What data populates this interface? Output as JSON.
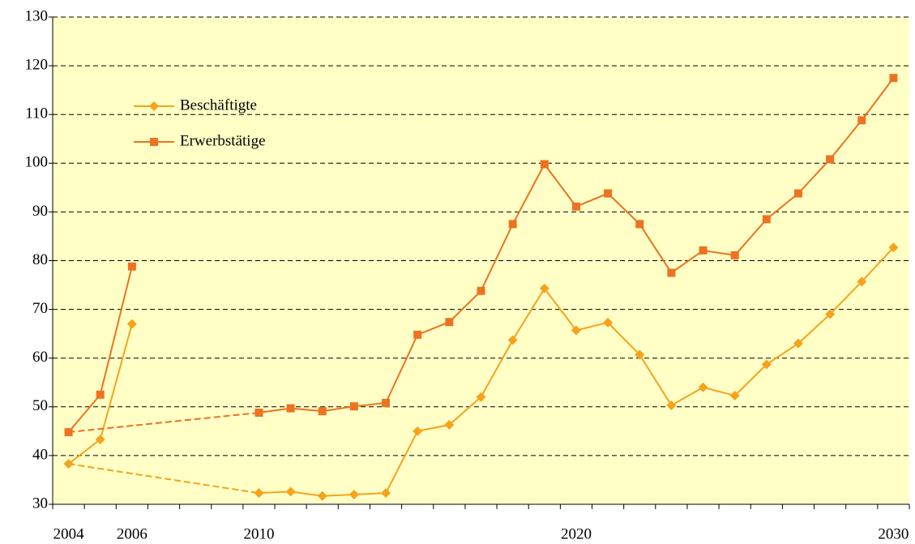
{
  "chart_data": {
    "type": "line",
    "categories": [
      "2004",
      null,
      "2006",
      null,
      null,
      null,
      "2010",
      null,
      null,
      null,
      null,
      null,
      null,
      null,
      null,
      null,
      "2020",
      null,
      null,
      null,
      null,
      null,
      null,
      null,
      null,
      null,
      "2030"
    ],
    "series": [
      {
        "name": "Beschäftigte",
        "color": "#f7a21b",
        "marker": "diamond",
        "values": [
          38.3,
          43.3,
          67.0,
          null,
          null,
          null,
          32.3,
          32.6,
          31.7,
          32.0,
          32.3,
          45.0,
          46.3,
          52.0,
          63.7,
          74.3,
          65.7,
          67.3,
          60.7,
          50.3,
          54.0,
          52.3,
          58.7,
          63.0,
          69.0,
          75.7,
          82.7
        ]
      },
      {
        "name": "Erwerbstätige",
        "color": "#ee7220",
        "marker": "square",
        "values": [
          44.8,
          52.5,
          78.8,
          null,
          null,
          null,
          48.8,
          49.7,
          49.1,
          50.1,
          50.8,
          64.8,
          67.4,
          73.8,
          87.5,
          99.8,
          91.1,
          93.8,
          87.5,
          77.5,
          82.1,
          81.1,
          88.5,
          93.8,
          100.8,
          108.8,
          117.5
        ]
      }
    ],
    "ylim": [
      30,
      130
    ],
    "yticks": [
      30,
      40,
      50,
      60,
      70,
      80,
      90,
      100,
      110,
      120,
      130
    ],
    "grid": true,
    "legend": "upper left",
    "background": "#ffffc6"
  }
}
